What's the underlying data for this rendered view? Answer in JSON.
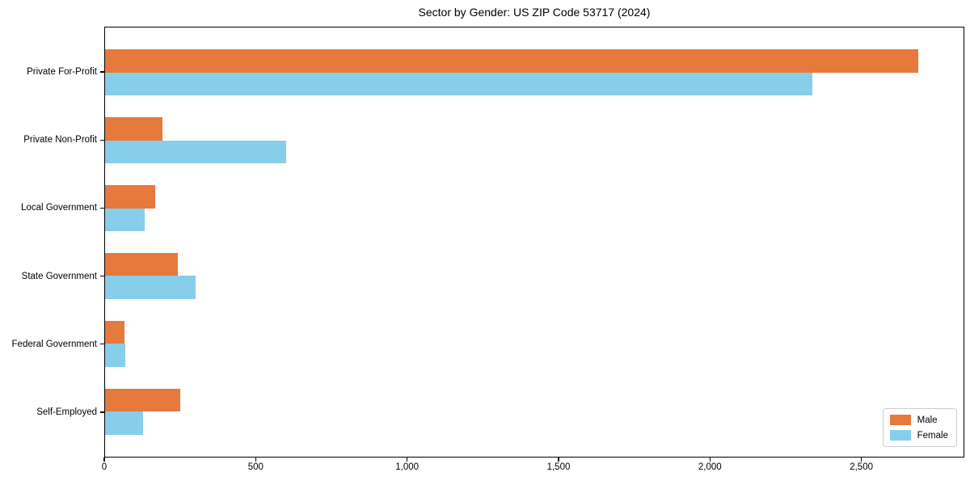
{
  "chart_data": {
    "type": "bar",
    "orientation": "horizontal",
    "title": "Sector by Gender: US ZIP Code 53717 (2024)",
    "categories": [
      "Private For-Profit",
      "Private Non-Profit",
      "Local Government",
      "State Government",
      "Federal Government",
      "Self-Employed"
    ],
    "series": [
      {
        "name": "Male",
        "color": "#E6793C",
        "values": [
          2690,
          190,
          165,
          240,
          65,
          250
        ]
      },
      {
        "name": "Female",
        "color": "#87CEEB",
        "values": [
          2340,
          600,
          130,
          300,
          68,
          127
        ]
      }
    ],
    "xlim": [
      0,
      2840
    ],
    "xticks": [
      0,
      500,
      1000,
      1500,
      2000,
      2500
    ],
    "xtick_labels": [
      "0",
      "500",
      "1,000",
      "1,500",
      "2,000",
      "2,500"
    ],
    "xlabel": "",
    "ylabel": "",
    "grid": false,
    "legend_position": "lower right",
    "colors": {
      "axis": "#000000",
      "text": "#000000",
      "legend_border": "#cccccc",
      "background": "#ffffff"
    }
  }
}
